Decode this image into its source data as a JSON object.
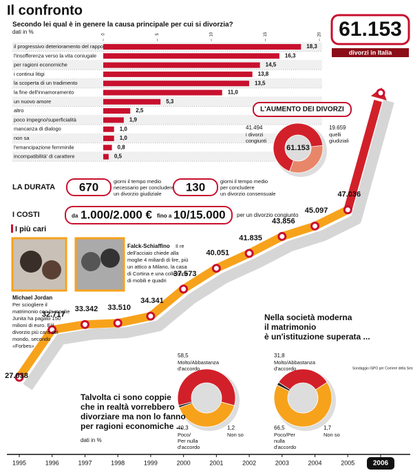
{
  "title": "Il confronto",
  "header_caption": "divorzi in Italia",
  "durata": {
    "title": "LA DURATA",
    "items": [
      {
        "value": 670,
        "text": [
          "giorni il tempo medio",
          "necessario per concludere",
          "un divorzio giudiziale"
        ]
      },
      {
        "value": 130,
        "text": [
          "giorni il tempo medio",
          "per concludere",
          "un divorzio consensuale"
        ]
      }
    ]
  },
  "costi": {
    "title": "I COSTI",
    "from": "da",
    "min": "1.000/2.000 €",
    "to": "fino a",
    "max": "10/15.000",
    "note": "per un divorzio congiunto"
  },
  "cari": {
    "title": "I più cari",
    "people": [
      {
        "name": "Michael Jordan",
        "text": [
          "Per sciogliere il",
          "matrimonio con la moglie",
          "Junita ha pagato 150",
          "milioni di euro. E'il",
          "divorzio più caro del",
          "mondo, secondo",
          "«Forbes»"
        ]
      },
      {
        "name": "Falck-Schiaffino",
        "text": [
          "Il re",
          "dell'acciaio chiede alla",
          "moglie 4 miliardi di lire, più",
          "un attico a Milano, la casa",
          "di Cortina e una collezione",
          "di mobili e quadri"
        ]
      }
    ]
  },
  "source": [
    "Sondaggio ISPO per Corriere della Sera"
  ],
  "chart_data": [
    {
      "type": "bar",
      "orientation": "horizontal",
      "subtitle": "Secondo lei qual è in genere la causa principale per cui si divorzia?",
      "unit_note": "dati in %",
      "categories": [
        "il progressivo deterioramento del rapporto",
        "l'insofferenza verso la vita coniugale",
        "per ragioni economiche",
        "i continui litigi",
        "la scoperta di un tradimento",
        "la fine dell'innamoramento",
        "un nuovo amore",
        "altro",
        "poco impegno/superficialità",
        "mancanza di dialogo",
        "non sa",
        "l'emancipazione femminile",
        "incompatibilità' di carattere"
      ],
      "values": [
        18.3,
        16.3,
        14.5,
        13.8,
        13.5,
        11.0,
        5.3,
        2.5,
        1.9,
        1.0,
        1.0,
        0.8,
        0.5
      ],
      "value_labels": [
        "18,3",
        "16,3",
        "14,5",
        "13,8",
        "13,5",
        "11,0",
        "5,3",
        "2,5",
        "1,9",
        "1,0",
        "1,0",
        "0,8",
        "0,5"
      ],
      "xlim": [
        0,
        20
      ],
      "xticks": [
        0,
        5,
        10,
        15,
        20
      ],
      "color": "#c8102e"
    },
    {
      "type": "line",
      "x": [
        1995,
        1996,
        1997,
        1998,
        1999,
        2000,
        2001,
        2002,
        2003,
        2004,
        2005,
        2006
      ],
      "values": [
        27038,
        32717,
        33342,
        33510,
        34341,
        37573,
        40051,
        41835,
        43856,
        45097,
        47036,
        61153
      ],
      "value_labels": [
        "27.038",
        "32.717",
        "33.342",
        "33.510",
        "34.341",
        "37.573",
        "40.051",
        "41.835",
        "43.856",
        "45.097",
        "47.036",
        "61.153"
      ],
      "color": "#f7a21b",
      "last_color": "#d2202a"
    },
    {
      "type": "pie",
      "title": "L'AUMENTO DEI DIVORZI",
      "categories": [
        [
          "i divorzi",
          "congiunti"
        ],
        [
          "quelli",
          "giudiziali"
        ]
      ],
      "values": [
        41494,
        19659
      ],
      "value_labels": [
        "41.494",
        "19.659"
      ],
      "colors": [
        "#d2202a",
        "#e8866a"
      ]
    },
    {
      "type": "pie",
      "title": [
        "Talvolta ci sono coppie",
        "che in realtà vorrebbero",
        "divorziare ma non lo fanno",
        "per ragioni economiche ..."
      ],
      "unit_note": "dati in %",
      "categories": [
        [
          "Molto/Abbastanza",
          "d'accordo"
        ],
        [
          "Poco/",
          "Per nulla",
          "d'accordo"
        ],
        [
          "Non so"
        ]
      ],
      "values": [
        58.5,
        40.3,
        1.2
      ],
      "value_labels": [
        "58,5",
        "40,3",
        "1,2"
      ],
      "colors": [
        "#d2202a",
        "#f7a21b",
        "#222222"
      ]
    },
    {
      "type": "pie",
      "title": [
        "Nella società moderna",
        "il matrimonio",
        "è un'istituzione superata ..."
      ],
      "categories": [
        [
          "Molto/Abbastanza",
          "d'accordo"
        ],
        [
          "Poco/Per",
          "nulla",
          "d'accordo"
        ],
        [
          "Non so"
        ]
      ],
      "values": [
        31.8,
        66.5,
        1.7
      ],
      "value_labels": [
        "31,8",
        "66,5",
        "1,7"
      ],
      "colors": [
        "#d2202a",
        "#f7a21b",
        "#222222"
      ]
    }
  ]
}
